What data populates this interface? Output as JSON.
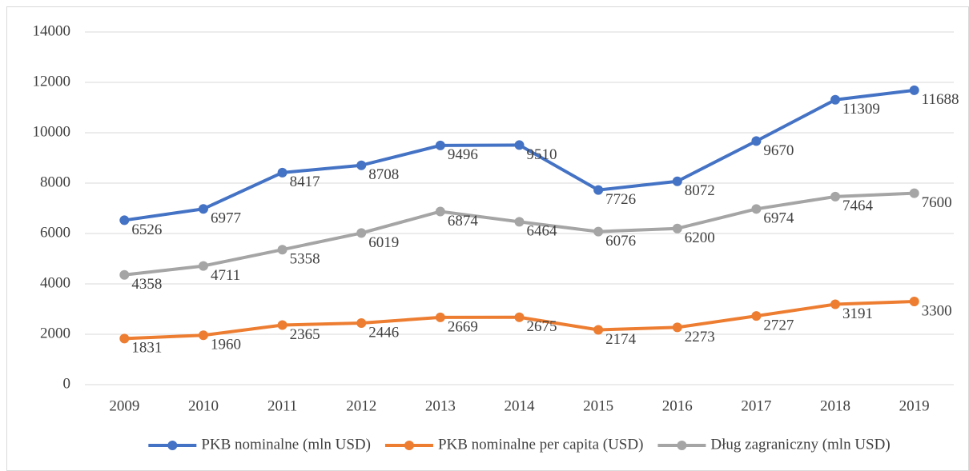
{
  "chart_data": {
    "type": "line",
    "categories": [
      "2009",
      "2010",
      "2011",
      "2012",
      "2013",
      "2014",
      "2015",
      "2016",
      "2017",
      "2018",
      "2019"
    ],
    "series": [
      {
        "name": "PKB nominalne (mln USD)",
        "color": "#4472c4",
        "values": [
          6526,
          6977,
          8417,
          8708,
          9496,
          9510,
          7726,
          8072,
          9670,
          11309,
          11688
        ]
      },
      {
        "name": "PKB nominalne per capita (USD)",
        "color": "#ed7d31",
        "values": [
          1831,
          1960,
          2365,
          2446,
          2669,
          2675,
          2174,
          2273,
          2727,
          3191,
          3300
        ]
      },
      {
        "name": "Dług zagraniczny (mln USD)",
        "color": "#a5a5a5",
        "values": [
          4358,
          4711,
          5358,
          6019,
          6874,
          6464,
          6076,
          6200,
          6974,
          7464,
          7600
        ]
      }
    ],
    "ylim": [
      0,
      14000
    ],
    "yticks": [
      0,
      2000,
      4000,
      6000,
      8000,
      10000,
      12000,
      14000
    ],
    "grid": true,
    "legend": "bottom"
  }
}
